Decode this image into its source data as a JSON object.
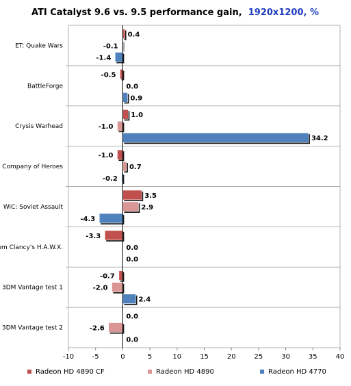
{
  "chart_data": {
    "type": "bar",
    "orientation": "horizontal",
    "title": "ATI Catalyst 9.6 vs. 9.5 performance gain,",
    "title_highlight": "1920x1200, %",
    "xlabel": "",
    "ylabel": "",
    "xlim": [
      -10,
      40
    ],
    "xticks": [
      -10,
      -5,
      0,
      5,
      10,
      15,
      20,
      25,
      30,
      35,
      40
    ],
    "grid": false,
    "legend_position": "bottom",
    "categories": [
      "ET: Quake Wars",
      "BattleForge",
      "Crysis Warhead",
      "Company of Heroes",
      "WiC: Soviet Assault",
      "Tom Clancy's H.A.W.X.",
      "3DM Vantage test 1",
      "3DM Vantage test 2"
    ],
    "series": [
      {
        "name": "Radeon HD 4890 CF",
        "color": "#c0504d",
        "values": [
          0.4,
          -0.5,
          1.0,
          -1.0,
          3.5,
          -3.3,
          -0.7,
          0.0
        ]
      },
      {
        "name": "Radeon HD 4890",
        "color": "#d99694",
        "values": [
          -0.1,
          0.0,
          -1.0,
          0.7,
          2.9,
          0.0,
          -2.0,
          -2.6
        ]
      },
      {
        "name": "Radeon HD 4770",
        "color": "#4f81bd",
        "values": [
          -1.4,
          0.9,
          34.2,
          -0.2,
          -4.3,
          0.0,
          2.4,
          0.0
        ]
      }
    ]
  }
}
